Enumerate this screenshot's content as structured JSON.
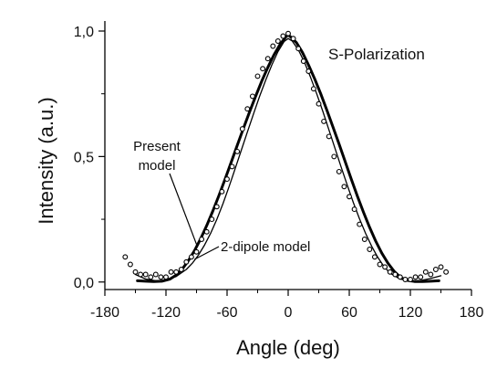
{
  "chart_data": {
    "type": "line",
    "title": "",
    "annotation": "S-Polarization",
    "xlabel": "Angle (deg)",
    "ylabel": "Intensity (a.u.)",
    "xlim": [
      -180,
      180
    ],
    "ylim": [
      -0.03,
      1.04
    ],
    "xticks": [
      -180,
      -120,
      -60,
      0,
      60,
      120,
      180
    ],
    "xtick_labels": [
      "-180",
      "-120",
      "-60",
      "0",
      "60",
      "120",
      "180"
    ],
    "yticks": [
      0,
      0.5,
      1
    ],
    "ytick_labels": [
      "0,0",
      "0,5",
      "1,0"
    ],
    "grid": false,
    "legend": "none",
    "series": [
      {
        "name": "Present model",
        "style": "solid thick",
        "color": "#000000",
        "x": [
          -148,
          -140,
          -132,
          -124,
          -116,
          -110,
          -104,
          -98,
          -92,
          -86,
          -80,
          -74,
          -68,
          -62,
          -56,
          -50,
          -44,
          -38,
          -32,
          -26,
          -20,
          -14,
          -8,
          -2,
          0,
          2,
          8,
          14,
          20,
          26,
          32,
          38,
          44,
          50,
          56,
          62,
          68,
          74,
          80,
          86,
          92,
          98,
          104,
          110,
          116,
          124,
          132,
          140,
          148
        ],
        "y": [
          0.005,
          0.003,
          0.002,
          0.003,
          0.012,
          0.028,
          0.052,
          0.085,
          0.125,
          0.172,
          0.225,
          0.283,
          0.345,
          0.41,
          0.477,
          0.545,
          0.612,
          0.677,
          0.74,
          0.8,
          0.855,
          0.905,
          0.947,
          0.978,
          0.985,
          0.978,
          0.955,
          0.915,
          0.865,
          0.81,
          0.75,
          0.685,
          0.618,
          0.55,
          0.48,
          0.41,
          0.342,
          0.278,
          0.218,
          0.163,
          0.115,
          0.075,
          0.043,
          0.02,
          0.007,
          0.002,
          0.002,
          0.003,
          0.005
        ]
      },
      {
        "name": "2-dipole model",
        "style": "solid thin",
        "color": "#000000",
        "x": [
          -150,
          -140,
          -130,
          -120,
          -110,
          -100,
          -94,
          -88,
          -82,
          -76,
          -70,
          -64,
          -58,
          -52,
          -46,
          -40,
          -34,
          -28,
          -22,
          -16,
          -10,
          -4,
          0,
          4,
          10,
          16,
          22,
          28,
          34,
          40,
          46,
          52,
          58,
          64,
          70,
          76,
          82,
          88,
          94,
          100,
          110,
          120,
          130,
          140,
          150
        ],
        "y": [
          0.03,
          0.012,
          0.005,
          0.008,
          0.022,
          0.05,
          0.075,
          0.108,
          0.148,
          0.195,
          0.25,
          0.312,
          0.38,
          0.452,
          0.525,
          0.598,
          0.67,
          0.74,
          0.805,
          0.865,
          0.918,
          0.958,
          0.97,
          0.96,
          0.925,
          0.875,
          0.815,
          0.75,
          0.68,
          0.606,
          0.532,
          0.458,
          0.386,
          0.316,
          0.252,
          0.194,
          0.142,
          0.098,
          0.062,
          0.035,
          0.012,
          0.004,
          0.006,
          0.014,
          0.025
        ]
      },
      {
        "name": "",
        "style": "open circles",
        "color": "#000000",
        "x": [
          -160,
          -155,
          -150,
          -145,
          -140,
          -135,
          -130,
          -125,
          -120,
          -115,
          -110,
          -105,
          -100,
          -95,
          -90,
          -85,
          -80,
          -75,
          -70,
          -65,
          -60,
          -55,
          -50,
          -45,
          -40,
          -35,
          -30,
          -25,
          -20,
          -15,
          -10,
          -5,
          0,
          5,
          10,
          15,
          20,
          25,
          30,
          35,
          40,
          45,
          50,
          55,
          60,
          65,
          70,
          75,
          80,
          85,
          90,
          95,
          100,
          105,
          110,
          115,
          120,
          125,
          130,
          135,
          140,
          145,
          150,
          155
        ],
        "y": [
          0.1,
          0.07,
          0.04,
          0.03,
          0.03,
          0.02,
          0.03,
          0.02,
          0.02,
          0.04,
          0.04,
          0.05,
          0.08,
          0.1,
          0.12,
          0.17,
          0.2,
          0.25,
          0.3,
          0.36,
          0.41,
          0.46,
          0.52,
          0.61,
          0.69,
          0.74,
          0.82,
          0.85,
          0.89,
          0.94,
          0.96,
          0.98,
          0.99,
          0.97,
          0.93,
          0.88,
          0.84,
          0.77,
          0.71,
          0.64,
          0.58,
          0.5,
          0.44,
          0.38,
          0.34,
          0.29,
          0.23,
          0.17,
          0.13,
          0.1,
          0.07,
          0.06,
          0.04,
          0.03,
          0.02,
          0.01,
          0.01,
          0.02,
          0.02,
          0.04,
          0.03,
          0.05,
          0.06,
          0.04
        ]
      }
    ],
    "annotations": [
      {
        "text": "Present",
        "target_x": -90,
        "target_y": 0.15
      },
      {
        "text": "model",
        "target_x": -90,
        "target_y": 0.15
      },
      {
        "text": "2-dipole model",
        "target_x": -92,
        "target_y": 0.09
      }
    ]
  }
}
